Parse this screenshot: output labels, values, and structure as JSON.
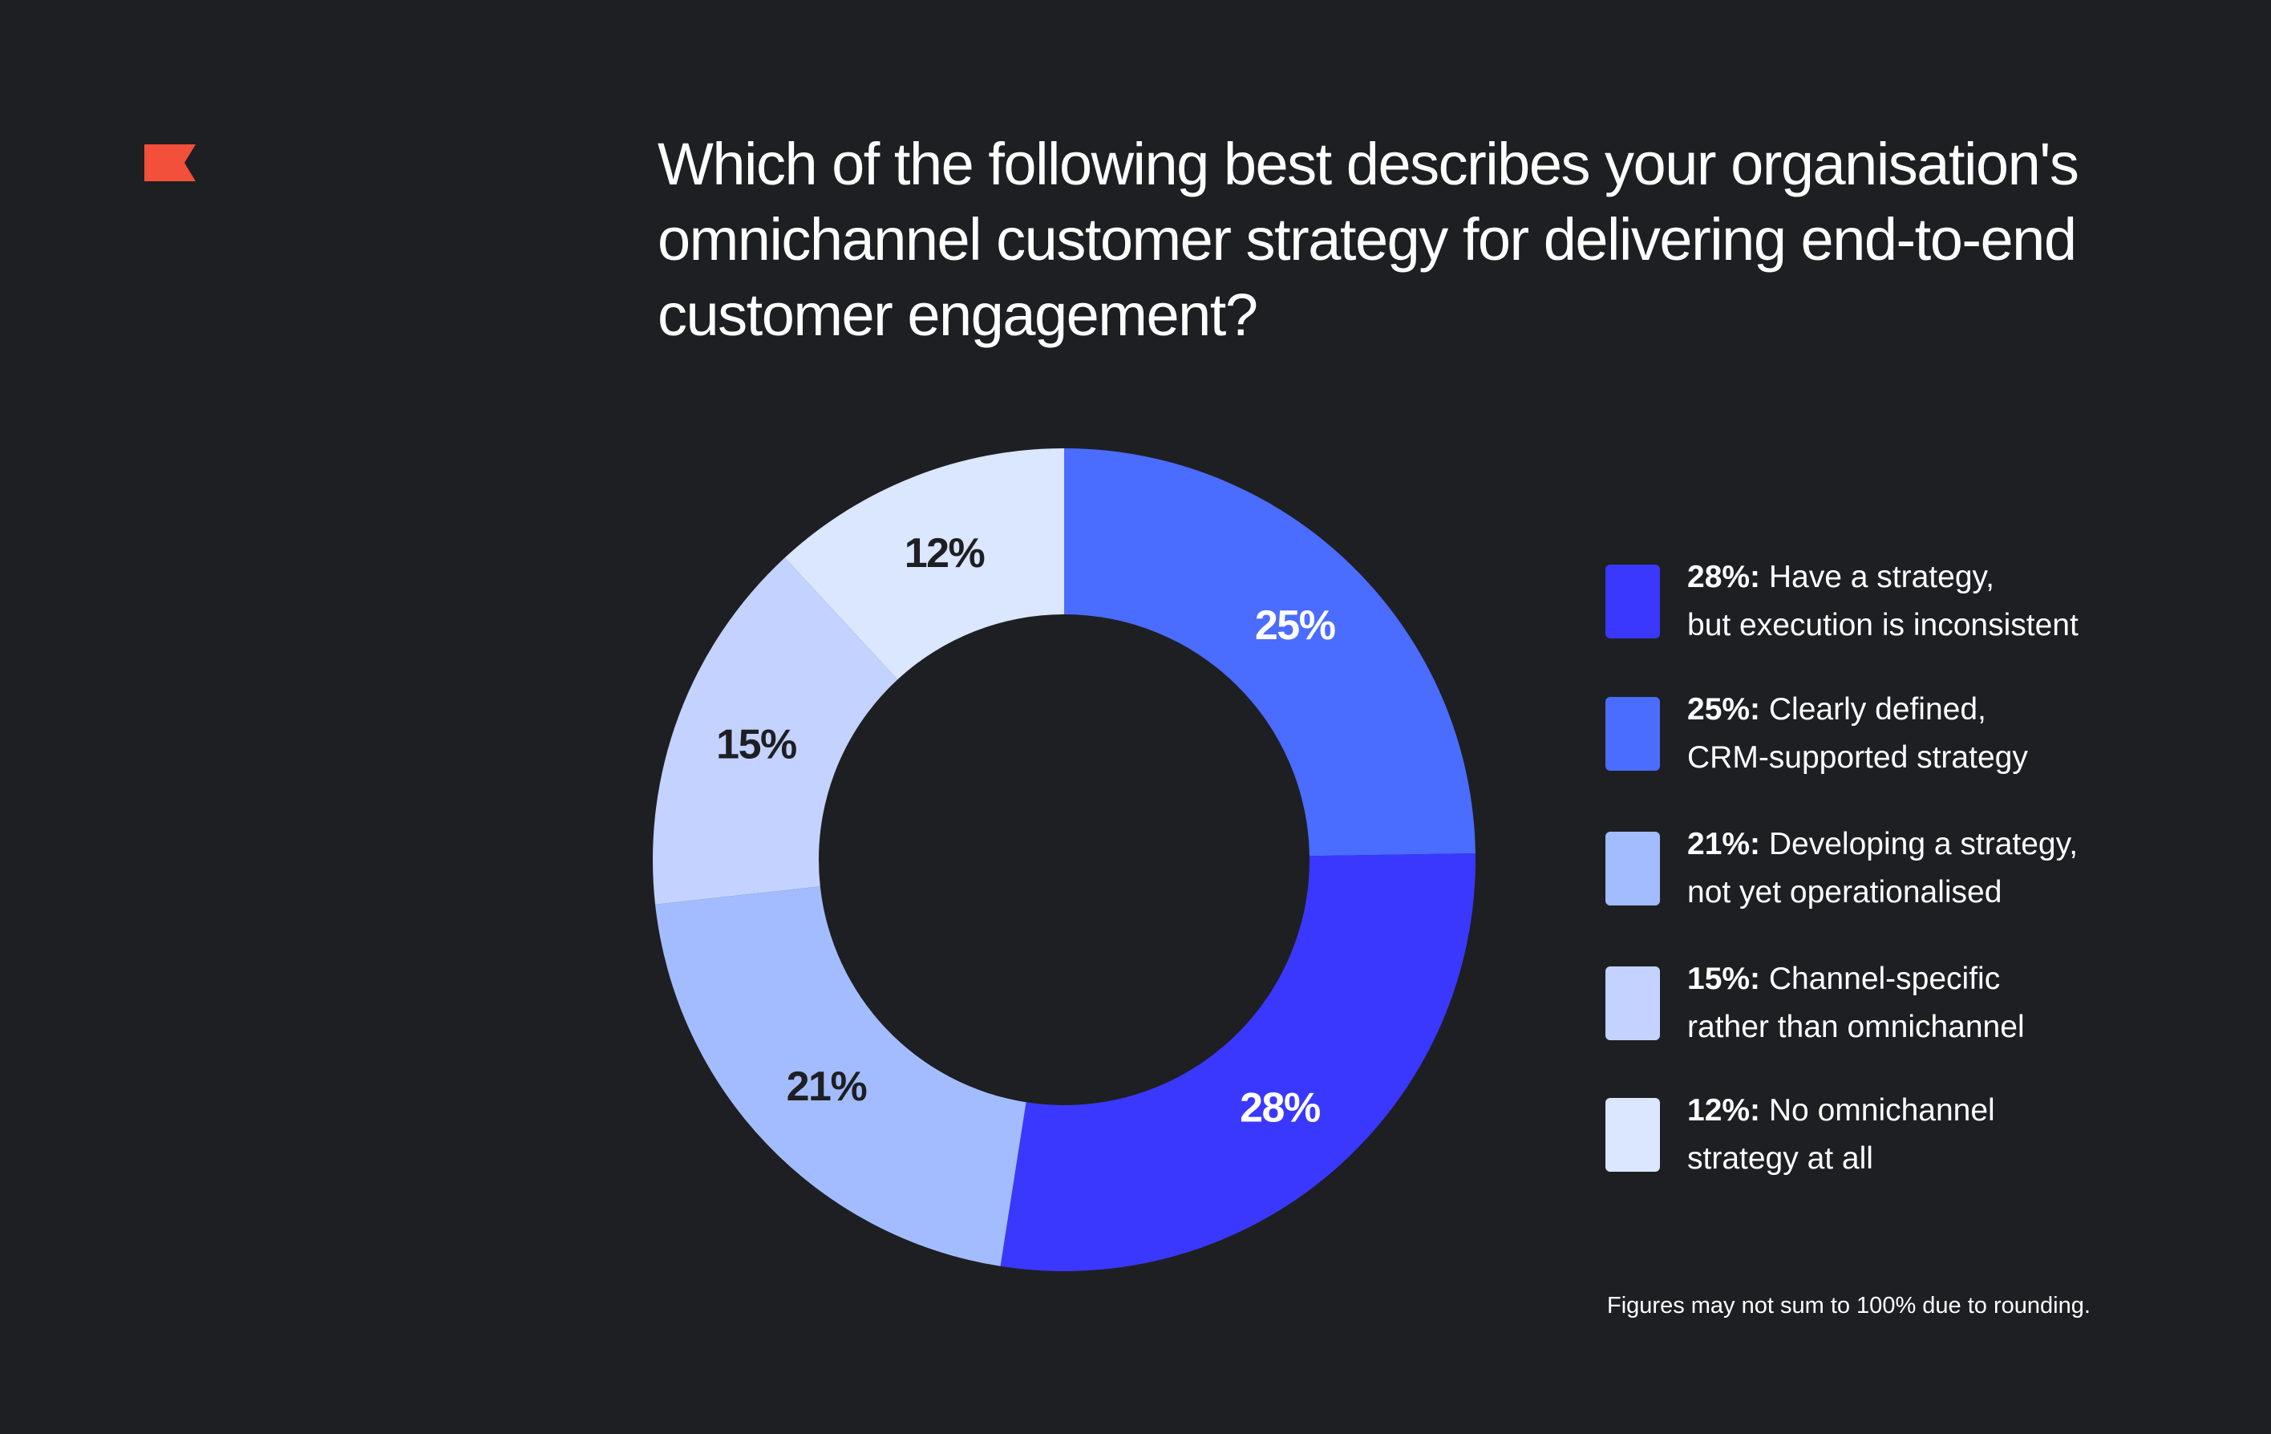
{
  "title": "Which of the following best describes your organisation's omnichannel customer strategy for delivering end-to-end customer engagement?",
  "footnote": "Figures may not sum to 100% due to rounding.",
  "colors": {
    "background": "#1e1f22",
    "logo": "#f2503a"
  },
  "legend": [
    {
      "value": "28%:",
      "text_line1": "Have a strategy,",
      "text_line2": "but execution is inconsistent",
      "color": "#3a38ff"
    },
    {
      "value": "25%:",
      "text_line1": "Clearly defined,",
      "text_line2": "CRM-supported strategy",
      "color": "#4a6cff"
    },
    {
      "value": "21%:",
      "text_line1": "Developing a strategy,",
      "text_line2": "not yet operationalised",
      "color": "#a3bcff"
    },
    {
      "value": "15%:",
      "text_line1": "Channel-specific",
      "text_line2": "rather than omnichannel",
      "color": "#c3d2ff"
    },
    {
      "value": "12%:",
      "text_line1": "No omnichannel",
      "text_line2": "strategy at all",
      "color": "#dbe6ff"
    }
  ],
  "chart_data": {
    "type": "pie",
    "donut": true,
    "slices": [
      {
        "label": "25%",
        "value": 25,
        "color": "#4a6cff",
        "label_color": "#ffffff"
      },
      {
        "label": "28%",
        "value": 28,
        "color": "#3a38ff",
        "label_color": "#ffffff"
      },
      {
        "label": "21%",
        "value": 21,
        "color": "#a3bcff",
        "label_color": "#1e1f22"
      },
      {
        "label": "15%",
        "value": 15,
        "color": "#c3d2ff",
        "label_color": "#1e1f22"
      },
      {
        "label": "12%",
        "value": 12,
        "color": "#dbe6ff",
        "label_color": "#1e1f22"
      }
    ]
  }
}
